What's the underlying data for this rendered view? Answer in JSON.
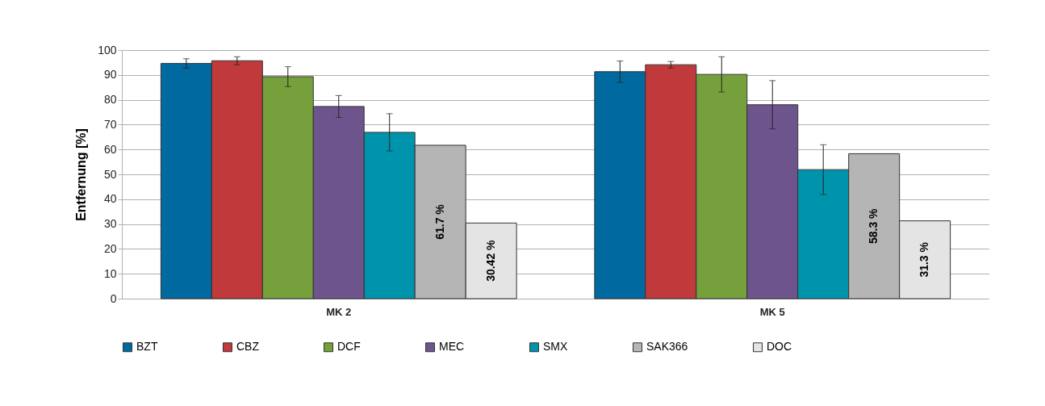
{
  "chart_data": {
    "type": "bar",
    "ylabel": "Entfernung [%]",
    "categories": [
      "MK 2",
      "MK 5"
    ],
    "series": [
      {
        "name": "BZT",
        "color": "#0069a0",
        "values": [
          94.6,
          91.3
        ],
        "errors": [
          1.9,
          4.3
        ]
      },
      {
        "name": "CBZ",
        "color": "#c0393b",
        "values": [
          95.7,
          94.1
        ],
        "errors": [
          1.6,
          1.3
        ]
      },
      {
        "name": "DCF",
        "color": "#76a03c",
        "values": [
          89.3,
          90.2
        ],
        "errors": [
          4,
          7.1
        ]
      },
      {
        "name": "MEC",
        "color": "#6e548c",
        "values": [
          77.3,
          78
        ],
        "errors": [
          4.4,
          9.7
        ]
      },
      {
        "name": "SMX",
        "color": "#0094ac",
        "values": [
          66.9,
          51.9
        ],
        "errors": [
          7.5,
          10
        ]
      },
      {
        "name": "SAK366",
        "color": "#b5b5b5",
        "values": [
          61.7,
          58.3
        ],
        "value_labels": [
          "61.7 %",
          "58.3 %"
        ]
      },
      {
        "name": "DOC",
        "color": "#e4e4e4",
        "values": [
          30.42,
          31.3
        ],
        "value_labels": [
          "30.42 %",
          "31.3 %"
        ]
      }
    ],
    "ylim": [
      0,
      100
    ],
    "yticks": [
      0,
      10,
      20,
      30,
      40,
      50,
      60,
      70,
      80,
      90,
      100
    ],
    "grid": "y",
    "legend": "bottom"
  }
}
